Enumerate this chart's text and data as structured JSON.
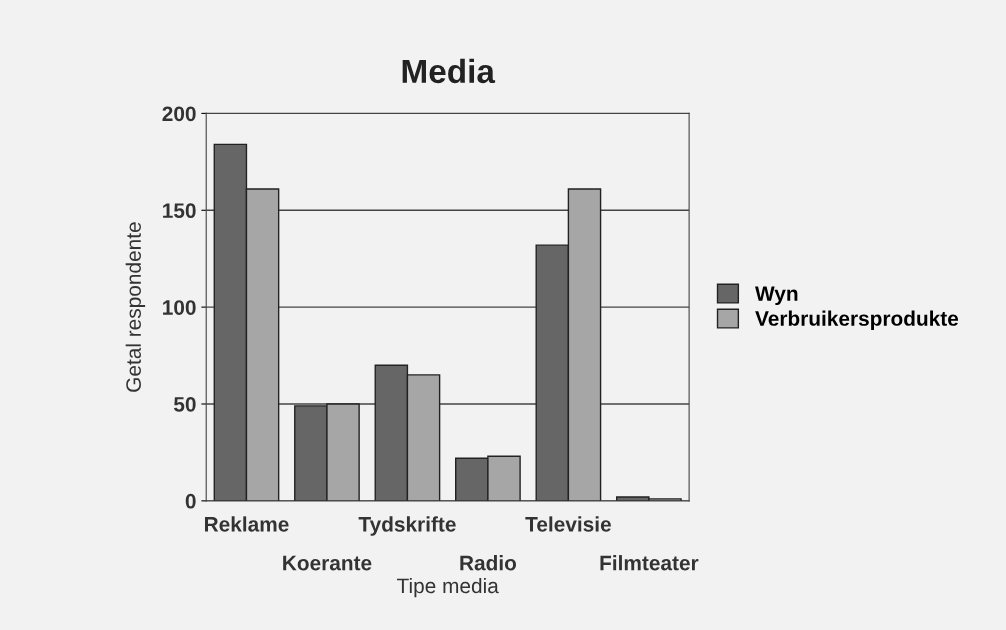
{
  "chart_data": {
    "type": "bar",
    "title": "Media",
    "xlabel": "Tipe media",
    "ylabel": "Getal respondente",
    "categories": [
      "Reklame",
      "Koerante",
      "Tydskrifte",
      "Radio",
      "Televisie",
      "Filmteater"
    ],
    "series": [
      {
        "name": "Wyn",
        "color": "#666666",
        "values": [
          184,
          49,
          70,
          22,
          132,
          2
        ]
      },
      {
        "name": "Verbruikersprodukte",
        "color": "#a6a6a6",
        "values": [
          161,
          50,
          65,
          23,
          161,
          1
        ]
      }
    ],
    "ylim": [
      0,
      200
    ],
    "yticks": [
      0,
      50,
      100,
      150,
      200
    ],
    "grid": "y",
    "legend": "right"
  }
}
